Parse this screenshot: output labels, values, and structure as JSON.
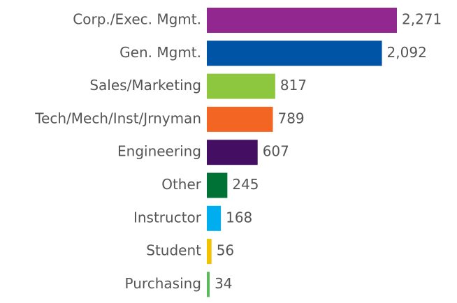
{
  "chart_data": {
    "type": "bar",
    "orientation": "horizontal",
    "categories": [
      "Corp./Exec. Mgmt.",
      "Gen. Mgmt.",
      "Sales/Marketing",
      "Tech/Mech/Inst/Jrnyman",
      "Engineering",
      "Other",
      "Instructor",
      "Student",
      "Purchasing"
    ],
    "values": [
      2271,
      2092,
      817,
      789,
      607,
      245,
      168,
      56,
      34
    ],
    "value_labels": [
      "2,271",
      "2,092",
      "817",
      "789",
      "607",
      "245",
      "168",
      "56",
      "34"
    ],
    "colors": [
      "#92278f",
      "#0054a6",
      "#8dc63f",
      "#f26522",
      "#440e62",
      "#007236",
      "#00aeef",
      "#f2c100",
      "#5cb85c"
    ]
  }
}
